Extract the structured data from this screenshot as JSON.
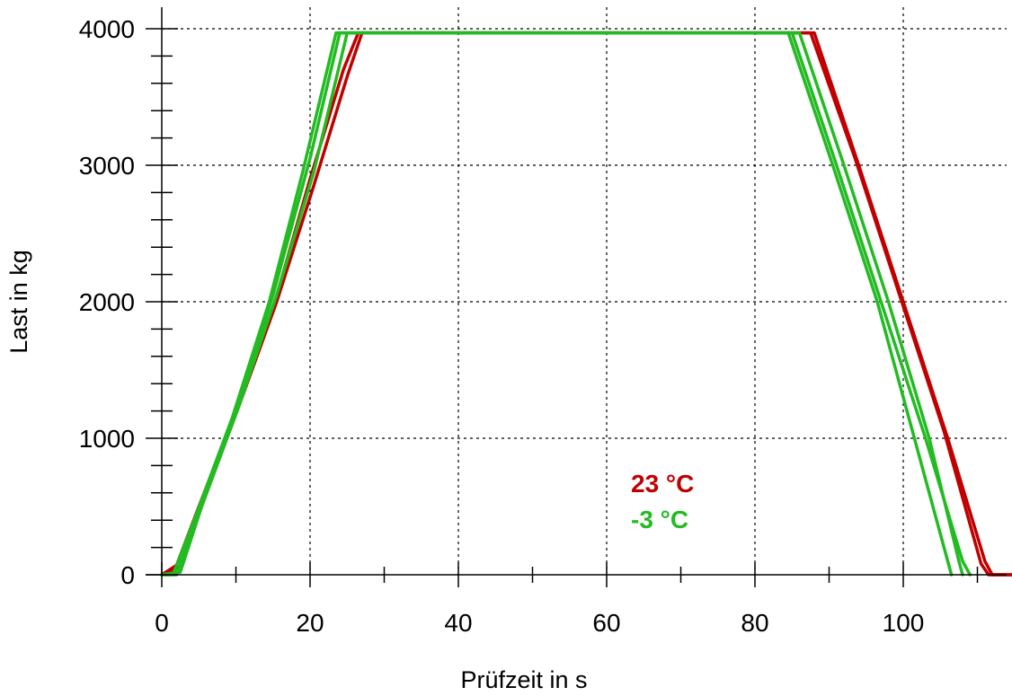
{
  "chart_data": {
    "type": "line",
    "title": "",
    "xlabel": "Prüfzeit in s",
    "ylabel": "Last in kg",
    "xlim": [
      0,
      115
    ],
    "ylim": [
      0,
      4000
    ],
    "x_ticks": [
      0,
      20,
      40,
      60,
      80,
      100
    ],
    "x_tick_labels": [
      "0",
      "20",
      "40",
      "60",
      "80",
      "100"
    ],
    "y_ticks": [
      0,
      1000,
      2000,
      3000,
      4000
    ],
    "y_tick_labels": [
      "0",
      "1000",
      "2000",
      "3000",
      "4000"
    ],
    "x_minor_step": 10,
    "y_minor_step": 200,
    "grid": true,
    "legend_position": "lower-center-right",
    "series": [
      {
        "name": "23 °C",
        "color": "#c00000",
        "points": [
          [
            0,
            0
          ],
          [
            2,
            70
          ],
          [
            5,
            500
          ],
          [
            10,
            1200
          ],
          [
            15,
            1950
          ],
          [
            20,
            2900
          ],
          [
            24.5,
            3700
          ],
          [
            26.5,
            3970
          ],
          [
            88,
            3970
          ],
          [
            94,
            3000
          ],
          [
            100,
            2000
          ],
          [
            106,
            1000
          ],
          [
            111,
            100
          ],
          [
            112,
            0
          ],
          [
            115,
            0
          ]
        ]
      },
      {
        "name": "23 °C",
        "color": "#c00000",
        "points": [
          [
            0,
            0
          ],
          [
            2.5,
            60
          ],
          [
            5.5,
            520
          ],
          [
            10.5,
            1250
          ],
          [
            15.5,
            2000
          ],
          [
            20.5,
            2850
          ],
          [
            25,
            3650
          ],
          [
            27,
            3970
          ],
          [
            87.5,
            3970
          ],
          [
            93.5,
            3050
          ],
          [
            99.5,
            2050
          ],
          [
            105.5,
            1050
          ],
          [
            110.5,
            80
          ],
          [
            111.5,
            0
          ],
          [
            115,
            0
          ]
        ]
      },
      {
        "name": "-3 °C",
        "color": "#22bb22",
        "points": [
          [
            0,
            0
          ],
          [
            2,
            0
          ],
          [
            5,
            450
          ],
          [
            10,
            1200
          ],
          [
            15,
            2050
          ],
          [
            20,
            3050
          ],
          [
            24,
            3970
          ],
          [
            85,
            3970
          ],
          [
            91,
            3000
          ],
          [
            97,
            2000
          ],
          [
            103,
            1000
          ],
          [
            108,
            100
          ],
          [
            109,
            0
          ]
        ]
      },
      {
        "name": "-3 °C",
        "color": "#22bb22",
        "points": [
          [
            0,
            0
          ],
          [
            1.5,
            0
          ],
          [
            4.5,
            420
          ],
          [
            9.5,
            1150
          ],
          [
            14.5,
            2000
          ],
          [
            19,
            2950
          ],
          [
            23.5,
            3970
          ],
          [
            84.5,
            3970
          ],
          [
            90.5,
            3000
          ],
          [
            96.5,
            2000
          ],
          [
            101.5,
            1000
          ],
          [
            106,
            100
          ],
          [
            106.5,
            0
          ]
        ]
      },
      {
        "name": "-3 °C",
        "color": "#22bb22",
        "points": [
          [
            0,
            0
          ],
          [
            2.5,
            20
          ],
          [
            5.5,
            520
          ],
          [
            10.5,
            1250
          ],
          [
            15.5,
            2050
          ],
          [
            20.5,
            2950
          ],
          [
            25,
            3970
          ],
          [
            86,
            3970
          ],
          [
            92,
            3000
          ],
          [
            98,
            2000
          ],
          [
            103.5,
            1000
          ],
          [
            107.5,
            100
          ],
          [
            108,
            0
          ]
        ]
      }
    ],
    "legend": [
      {
        "label": "23 °C",
        "color": "#c00000"
      },
      {
        "label": "-3 °C",
        "color": "#22bb22"
      }
    ]
  }
}
